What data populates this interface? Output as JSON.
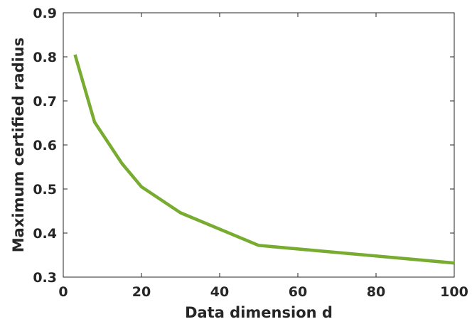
{
  "chart_data": {
    "type": "line",
    "xlabel": "Data dimension d",
    "ylabel": "Maximum certified radius",
    "xlim": [
      0,
      100
    ],
    "ylim": [
      0.3,
      0.9
    ],
    "xticks": [
      0,
      20,
      40,
      60,
      80,
      100
    ],
    "yticks": [
      0.3,
      0.4,
      0.5,
      0.6,
      0.7,
      0.8,
      0.9
    ],
    "xtick_labels": [
      "0",
      "20",
      "40",
      "60",
      "80",
      "100"
    ],
    "ytick_labels": [
      "0.3",
      "0.4",
      "0.5",
      "0.6",
      "0.7",
      "0.8",
      "0.9"
    ],
    "grid": false,
    "series": [
      {
        "color": "#77AC30",
        "x": [
          3,
          8,
          15,
          20,
          30,
          50,
          100
        ],
        "y": [
          0.805,
          0.652,
          0.558,
          0.505,
          0.446,
          0.372,
          0.332
        ]
      }
    ]
  }
}
